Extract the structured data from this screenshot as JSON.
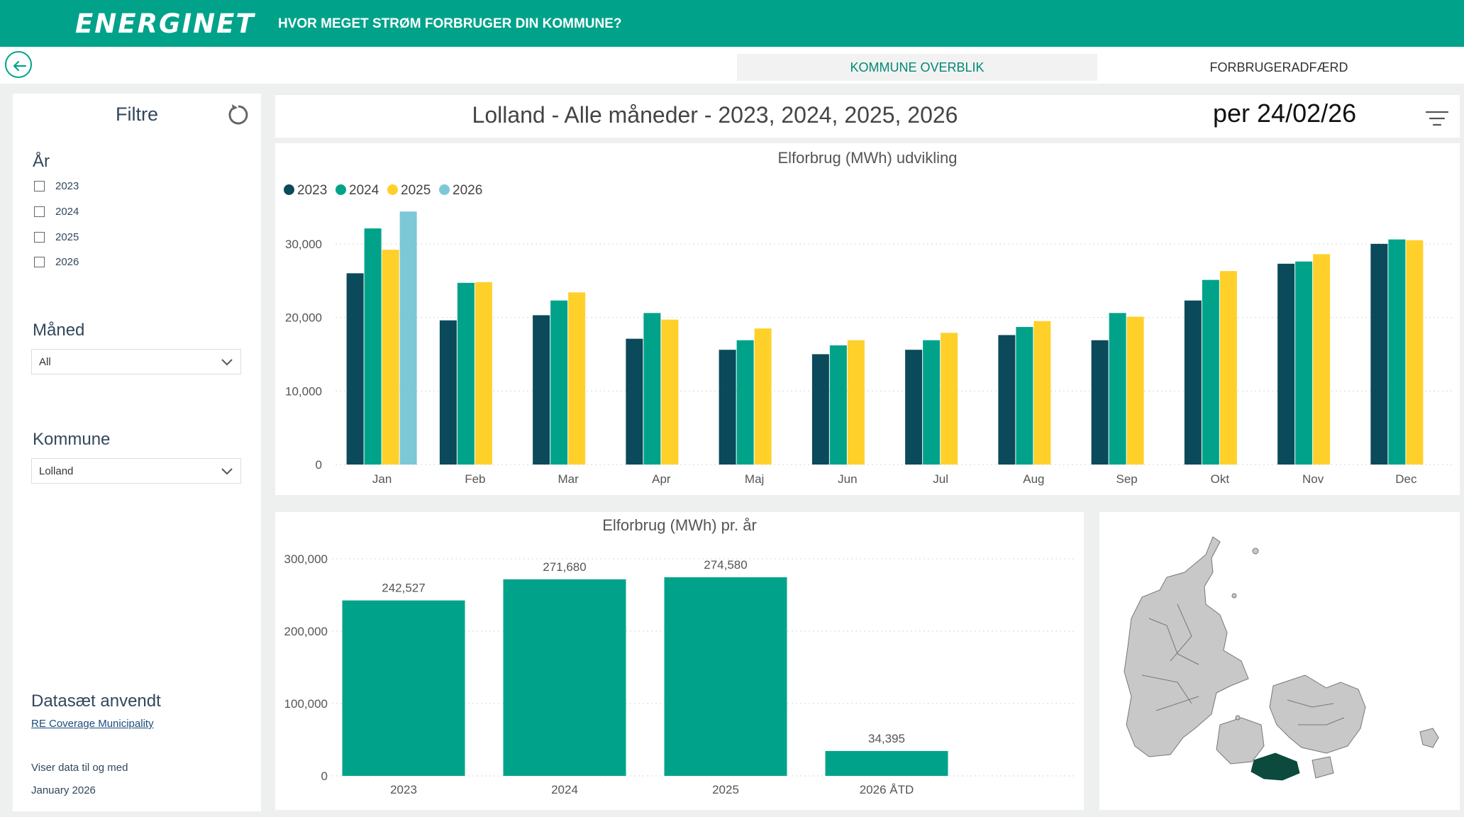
{
  "header": {
    "brand": "ENERGINET",
    "title": "HVOR MEGET STRØM FORBRUGER DIN KOMMUNE?"
  },
  "tabs": [
    {
      "label": "KOMMUNE OVERBLIK",
      "active": true
    },
    {
      "label": "FORBRUGERADFÆRD",
      "active": false
    }
  ],
  "filters": {
    "title": "Filtre",
    "year_label": "År",
    "years": [
      "2023",
      "2024",
      "2025",
      "2026"
    ],
    "month_label": "Måned",
    "month_value": "All",
    "municipality_label": "Kommune",
    "municipality_value": "Lolland",
    "dataset_label": "Datasæt anvendt",
    "dataset_link": "RE Coverage Municipality",
    "data_note_1": "Viser data til og med",
    "data_note_2": "January 2026"
  },
  "report": {
    "title": "Lolland - Alle måneder - 2023, 2024, 2025, 2026",
    "date": "per 24/02/26"
  },
  "colors": {
    "brand": "#00a38a",
    "y2023": "#0b4a5a",
    "y2024": "#00a38a",
    "y2025": "#ffd02a",
    "y2026": "#7cc8d6",
    "map_highlight": "#0c4a3e",
    "map_fill": "#c8c8c8"
  },
  "chart_data": [
    {
      "type": "bar",
      "title": "Elforbrug (MWh) udvikling",
      "categories": [
        "Jan",
        "Feb",
        "Mar",
        "Apr",
        "Maj",
        "Jun",
        "Jul",
        "Aug",
        "Sep",
        "Okt",
        "Nov",
        "Dec"
      ],
      "series": [
        {
          "name": "2023",
          "values": [
            26000,
            19600,
            20300,
            17100,
            15600,
            15000,
            15600,
            17600,
            16900,
            22300,
            27300,
            30000
          ]
        },
        {
          "name": "2024",
          "values": [
            32100,
            24700,
            22300,
            20600,
            16900,
            16200,
            16900,
            18700,
            20600,
            25100,
            27600,
            30600
          ]
        },
        {
          "name": "2025",
          "values": [
            29200,
            24800,
            23400,
            19700,
            18500,
            16900,
            17900,
            19500,
            20100,
            26300,
            28600,
            30500
          ]
        },
        {
          "name": "2026",
          "values": [
            34395,
            null,
            null,
            null,
            null,
            null,
            null,
            null,
            null,
            null,
            null,
            null
          ]
        }
      ],
      "ylim": [
        0,
        35000
      ],
      "yticks": [
        "0",
        "10,000",
        "20,000",
        "30,000"
      ],
      "legend": "top-left",
      "grid": true
    },
    {
      "type": "bar",
      "title": "Elforbrug (MWh) pr. år",
      "categories": [
        "2023",
        "2024",
        "2025",
        "2026 ÅTD"
      ],
      "values": [
        242527,
        271680,
        274580,
        34395
      ],
      "data_labels": [
        "242,527",
        "271,680",
        "274,580",
        "34,395"
      ],
      "ylim": [
        0,
        300000
      ],
      "yticks": [
        "0",
        "100,000",
        "200,000",
        "300,000"
      ],
      "grid": true
    }
  ]
}
